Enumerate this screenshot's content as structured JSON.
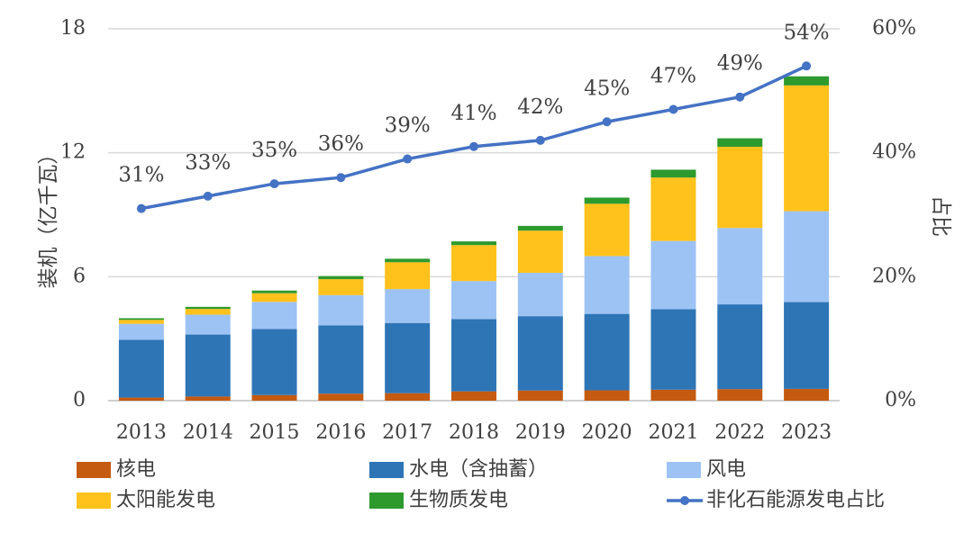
{
  "chart_data": {
    "type": "bar",
    "stacked": true,
    "categories": [
      "2013",
      "2014",
      "2015",
      "2016",
      "2017",
      "2018",
      "2019",
      "2020",
      "2021",
      "2022",
      "2023"
    ],
    "ylabel": "装机（亿千瓦）",
    "y2label": "占比",
    "ylim": [
      0,
      18
    ],
    "yticks": [
      "0",
      "6",
      "12",
      "18"
    ],
    "y2lim": [
      0,
      60
    ],
    "y2ticks": [
      "0%",
      "20%",
      "40%",
      "60%"
    ],
    "grid": true,
    "legend_position": "bottom",
    "series": [
      {
        "name": "核电",
        "color": "#c55a11",
        "values": [
          0.15,
          0.2,
          0.27,
          0.34,
          0.36,
          0.45,
          0.49,
          0.5,
          0.53,
          0.56,
          0.57
        ]
      },
      {
        "name": "水电（含抽蓄）",
        "color": "#2e75b6",
        "values": [
          2.8,
          3.0,
          3.2,
          3.3,
          3.4,
          3.5,
          3.6,
          3.7,
          3.9,
          4.1,
          4.2
        ]
      },
      {
        "name": "风电",
        "color": "#9dc3f5",
        "values": [
          0.77,
          0.96,
          1.31,
          1.47,
          1.64,
          1.84,
          2.1,
          2.8,
          3.3,
          3.7,
          4.4
        ]
      },
      {
        "name": "太阳能发电",
        "color": "#ffc21c",
        "values": [
          0.19,
          0.28,
          0.42,
          0.77,
          1.3,
          1.74,
          2.04,
          2.53,
          3.07,
          3.93,
          6.09
        ]
      },
      {
        "name": "生物质发电",
        "color": "#2e9a2e",
        "values": [
          0.08,
          0.1,
          0.13,
          0.15,
          0.17,
          0.18,
          0.23,
          0.3,
          0.38,
          0.41,
          0.44
        ]
      }
    ],
    "line_series": {
      "name": "非化石能源发电占比",
      "color": "#4472c4",
      "axis": "secondary",
      "values": [
        31,
        33,
        35,
        36,
        39,
        41,
        42,
        45,
        47,
        49,
        54
      ],
      "labels": [
        "31%",
        "33%",
        "35%",
        "36%",
        "39%",
        "41%",
        "42%",
        "45%",
        "47%",
        "49%",
        "54%"
      ]
    }
  }
}
